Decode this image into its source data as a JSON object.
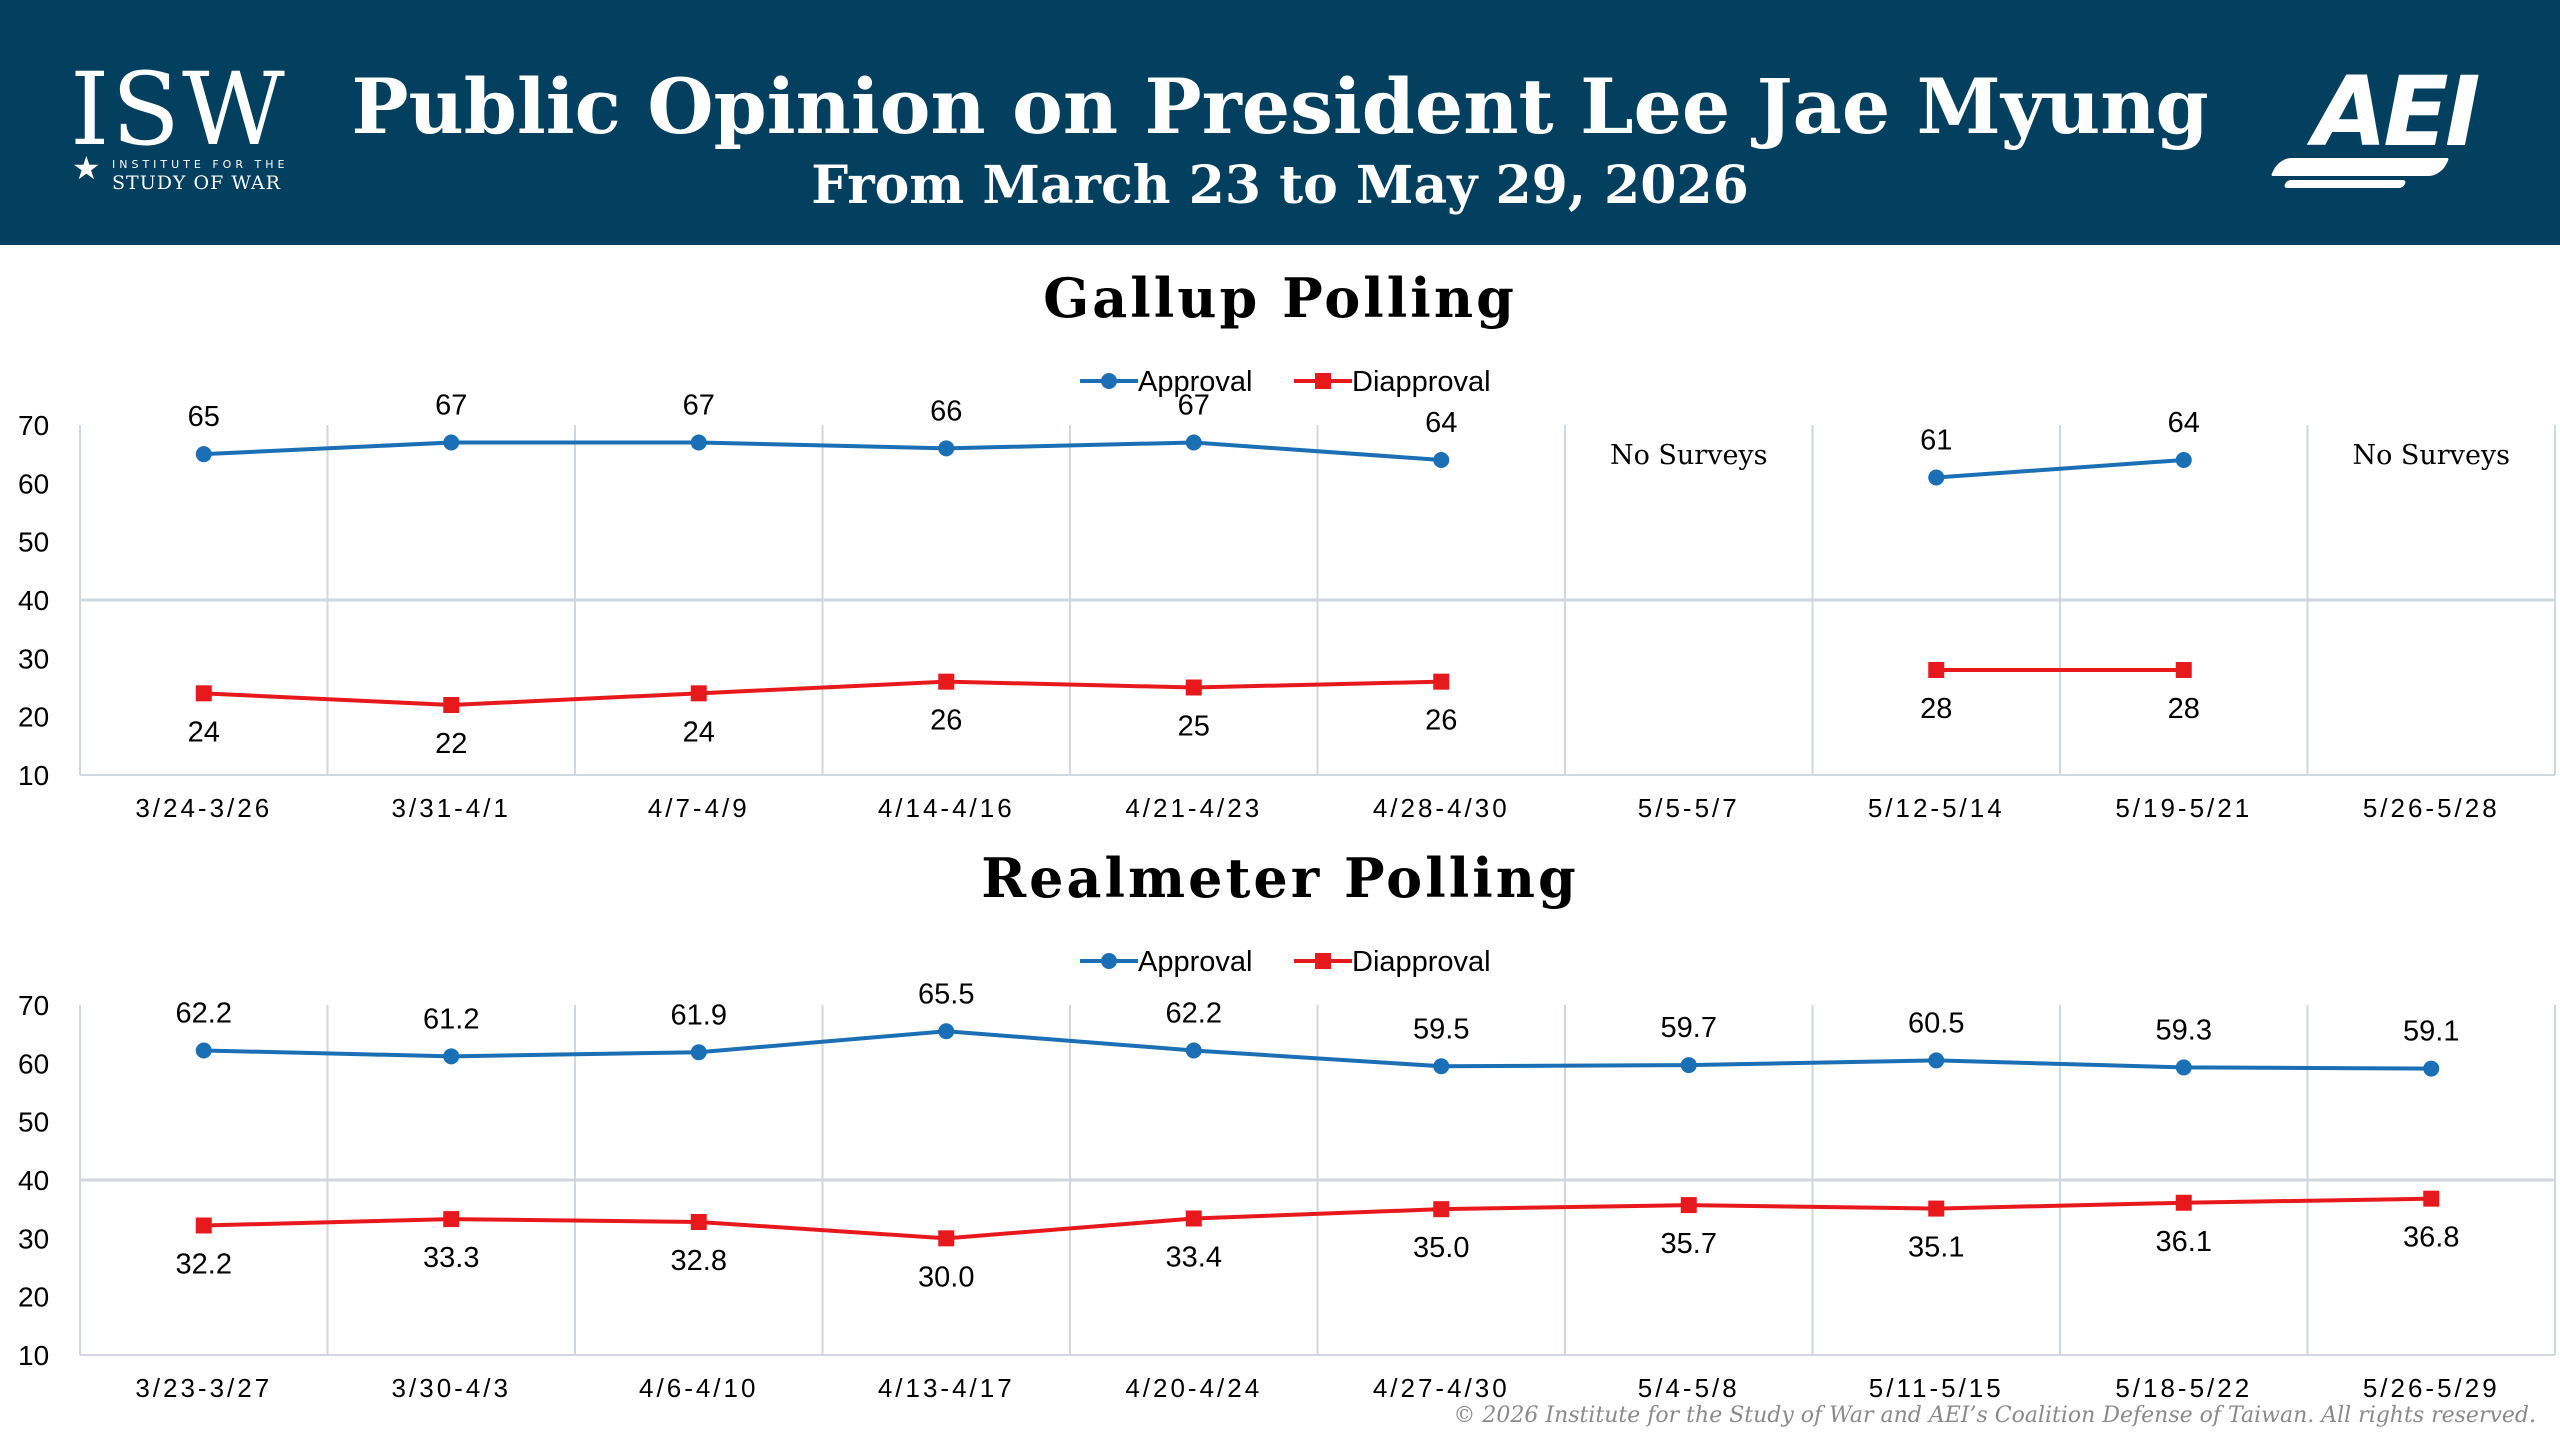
{
  "header": {
    "title": "Public Opinion on President Lee Jae Myung",
    "subtitle": "From March 23 to May 29, 2026",
    "isw_logo": {
      "letters": "ISW",
      "line1": "INSTITUTE FOR THE",
      "line2": "STUDY OF WAR",
      "icon": "star-icon"
    },
    "aei_logo": {
      "letters": "AEI"
    }
  },
  "colors": {
    "header_bg": "#033f5e",
    "approval": "#1a6fb5",
    "disapproval": "#e8191d",
    "gridline": "#d0d7de"
  },
  "chart_data": [
    {
      "type": "line",
      "title": "Gallup Polling",
      "categories": [
        "3/24-3/26",
        "3/31-4/1",
        "4/7-4/9",
        "4/14-4/16",
        "4/21-4/23",
        "4/28-4/30",
        "5/5-5/7",
        "5/12-5/14",
        "5/19-5/21",
        "5/26-5/28"
      ],
      "series": [
        {
          "name": "Approval",
          "values": [
            65,
            67,
            67,
            66,
            67,
            64,
            null,
            61,
            64,
            null
          ]
        },
        {
          "name": "Diapproval",
          "values": [
            24,
            22,
            24,
            26,
            25,
            26,
            null,
            28,
            28,
            null
          ]
        }
      ],
      "ylim": [
        10,
        70
      ],
      "yticks": [
        10,
        20,
        30,
        40,
        50,
        60,
        70
      ],
      "annotations": [
        {
          "category_index": 6,
          "text": "No Surveys"
        },
        {
          "category_index": 9,
          "text": "No Surveys"
        }
      ],
      "legend_position": "top-center",
      "grid": "vertical category lines and a horizontal line at 40"
    },
    {
      "type": "line",
      "title": "Realmeter Polling",
      "categories": [
        "3/23-3/27",
        "3/30-4/3",
        "4/6-4/10",
        "4/13-4/17",
        "4/20-4/24",
        "4/27-4/30",
        "5/4-5/8",
        "5/11-5/15",
        "5/18-5/22",
        "5/26-5/29"
      ],
      "series": [
        {
          "name": "Approval",
          "values": [
            62.2,
            61.2,
            61.9,
            65.5,
            62.2,
            59.5,
            59.7,
            60.5,
            59.3,
            59.1
          ]
        },
        {
          "name": "Diapproval",
          "values": [
            32.2,
            33.3,
            32.8,
            30.0,
            33.4,
            35.0,
            35.7,
            35.1,
            36.1,
            36.8
          ]
        }
      ],
      "ylim": [
        10,
        70
      ],
      "yticks": [
        10,
        20,
        30,
        40,
        50,
        60,
        70
      ],
      "annotations": [],
      "legend_position": "top-center",
      "grid": "vertical category lines and a horizontal line at 40"
    }
  ],
  "footer": {
    "copyright": "© 2026 Institute for the Study of War and AEI’s Coalition Defense of Taiwan. All rights reserved."
  }
}
